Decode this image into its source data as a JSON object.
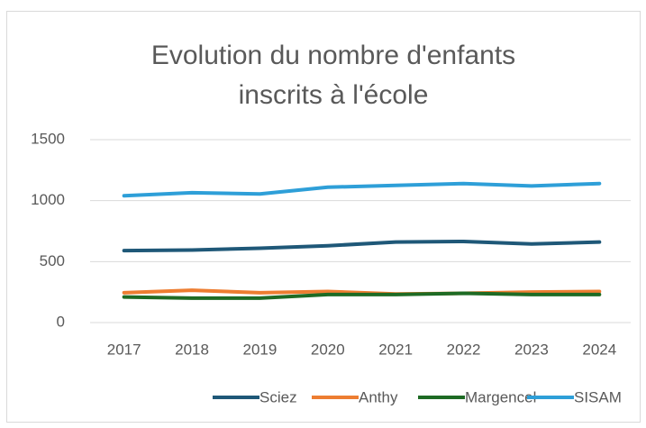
{
  "chart_data": {
    "type": "line",
    "title": "Evolution du nombre d'enfants inscrits à l'école",
    "categories": [
      "2017",
      "2018",
      "2019",
      "2020",
      "2021",
      "2022",
      "2023",
      "2024"
    ],
    "series": [
      {
        "name": "Sciez",
        "color": "#1f5878",
        "values": [
          590,
          595,
          610,
          630,
          660,
          665,
          645,
          660
        ]
      },
      {
        "name": "Anthy",
        "color": "#ed7d31",
        "values": [
          245,
          265,
          245,
          255,
          235,
          240,
          250,
          255
        ]
      },
      {
        "name": "Margencel",
        "color": "#1e6b24",
        "values": [
          210,
          200,
          200,
          230,
          230,
          240,
          230,
          230
        ]
      },
      {
        "name": "SISAM",
        "color": "#2e9fd8",
        "values": [
          1040,
          1065,
          1055,
          1110,
          1125,
          1140,
          1120,
          1140
        ]
      }
    ],
    "ylim": [
      0,
      1500
    ],
    "yticks": [
      0,
      500,
      1000,
      1500
    ],
    "grid": true,
    "legend": "bottom"
  }
}
